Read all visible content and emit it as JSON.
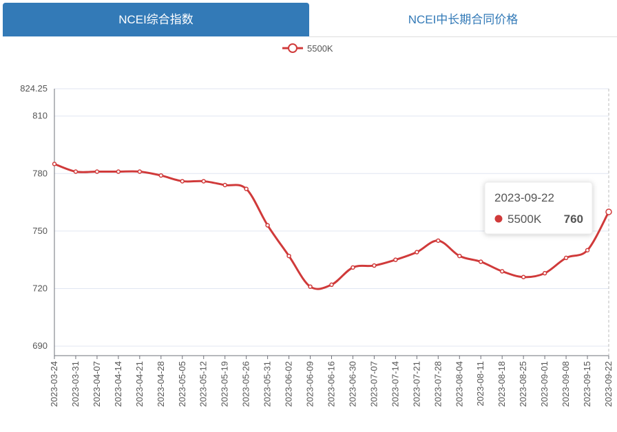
{
  "tabs": [
    "NCEI综合指数",
    "NCEI中长期合同价格"
  ],
  "chart_data": {
    "type": "line",
    "categories": [
      "2023-03-24",
      "2023-03-31",
      "2023-04-07",
      "2023-04-14",
      "2023-04-21",
      "2023-04-28",
      "2023-05-05",
      "2023-05-12",
      "2023-05-19",
      "2023-05-26",
      "2023-05-31",
      "2023-06-02",
      "2023-06-09",
      "2023-06-16",
      "2023-06-30",
      "2023-07-07",
      "2023-07-14",
      "2023-07-21",
      "2023-07-28",
      "2023-08-04",
      "2023-08-11",
      "2023-08-18",
      "2023-08-25",
      "2023-09-01",
      "2023-09-08",
      "2023-09-15",
      "2023-09-22"
    ],
    "series": [
      {
        "name": "5500K",
        "color": "#d03a3a",
        "values": [
          785,
          781,
          781,
          781,
          781,
          779,
          776,
          776,
          774,
          772,
          753,
          737,
          721,
          722,
          731,
          732,
          735,
          739,
          745,
          737,
          734,
          729,
          726,
          728,
          736,
          740,
          760
        ]
      }
    ],
    "ylim": [
      685,
      824.25
    ],
    "yticks": [
      690,
      720,
      750,
      780,
      810,
      824.25
    ],
    "grid": true,
    "smooth": true
  }
}
